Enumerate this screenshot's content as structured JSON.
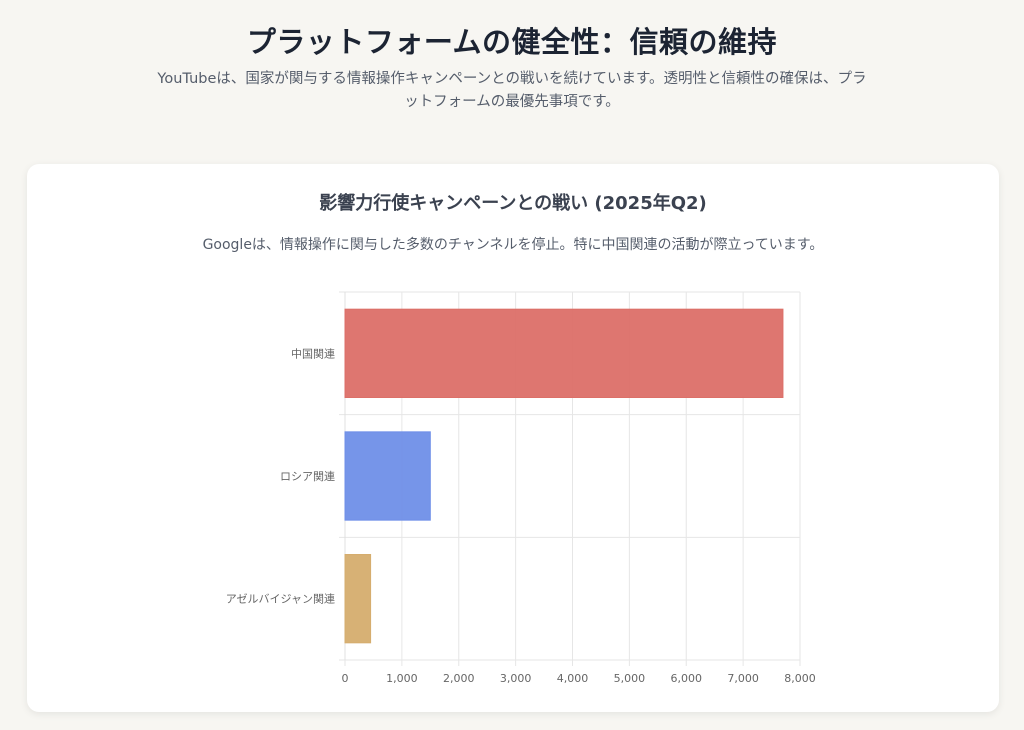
{
  "header": {
    "title": "プラットフォームの健全性：信頼の維持",
    "subtitle": "YouTubeは、国家が関与する情報操作キャンペーンとの戦いを続けています。透明性と信頼性の確保は、プラットフォームの最優先事項です。"
  },
  "card": {
    "title": "影響力行使キャンペーンとの戦い (2025年Q2)",
    "subtitle": "Googleは、情報操作に関与した多数のチャンネルを停止。特に中国関連の活動が際立っています。"
  },
  "chart_data": {
    "type": "bar",
    "orientation": "horizontal",
    "categories": [
      "中国関連",
      "ロシア関連",
      "アゼルバイジャン関連"
    ],
    "values": [
      7700,
      1500,
      450
    ],
    "colors": [
      "#dc6f68",
      "#6f8fe8",
      "#d5ad6e"
    ],
    "xlim": [
      0,
      8000
    ],
    "xticks": [
      "0",
      "1,000",
      "2,000",
      "3,000",
      "4,000",
      "5,000",
      "6,000",
      "7,000",
      "8,000"
    ],
    "grid": true,
    "legend": "none"
  }
}
